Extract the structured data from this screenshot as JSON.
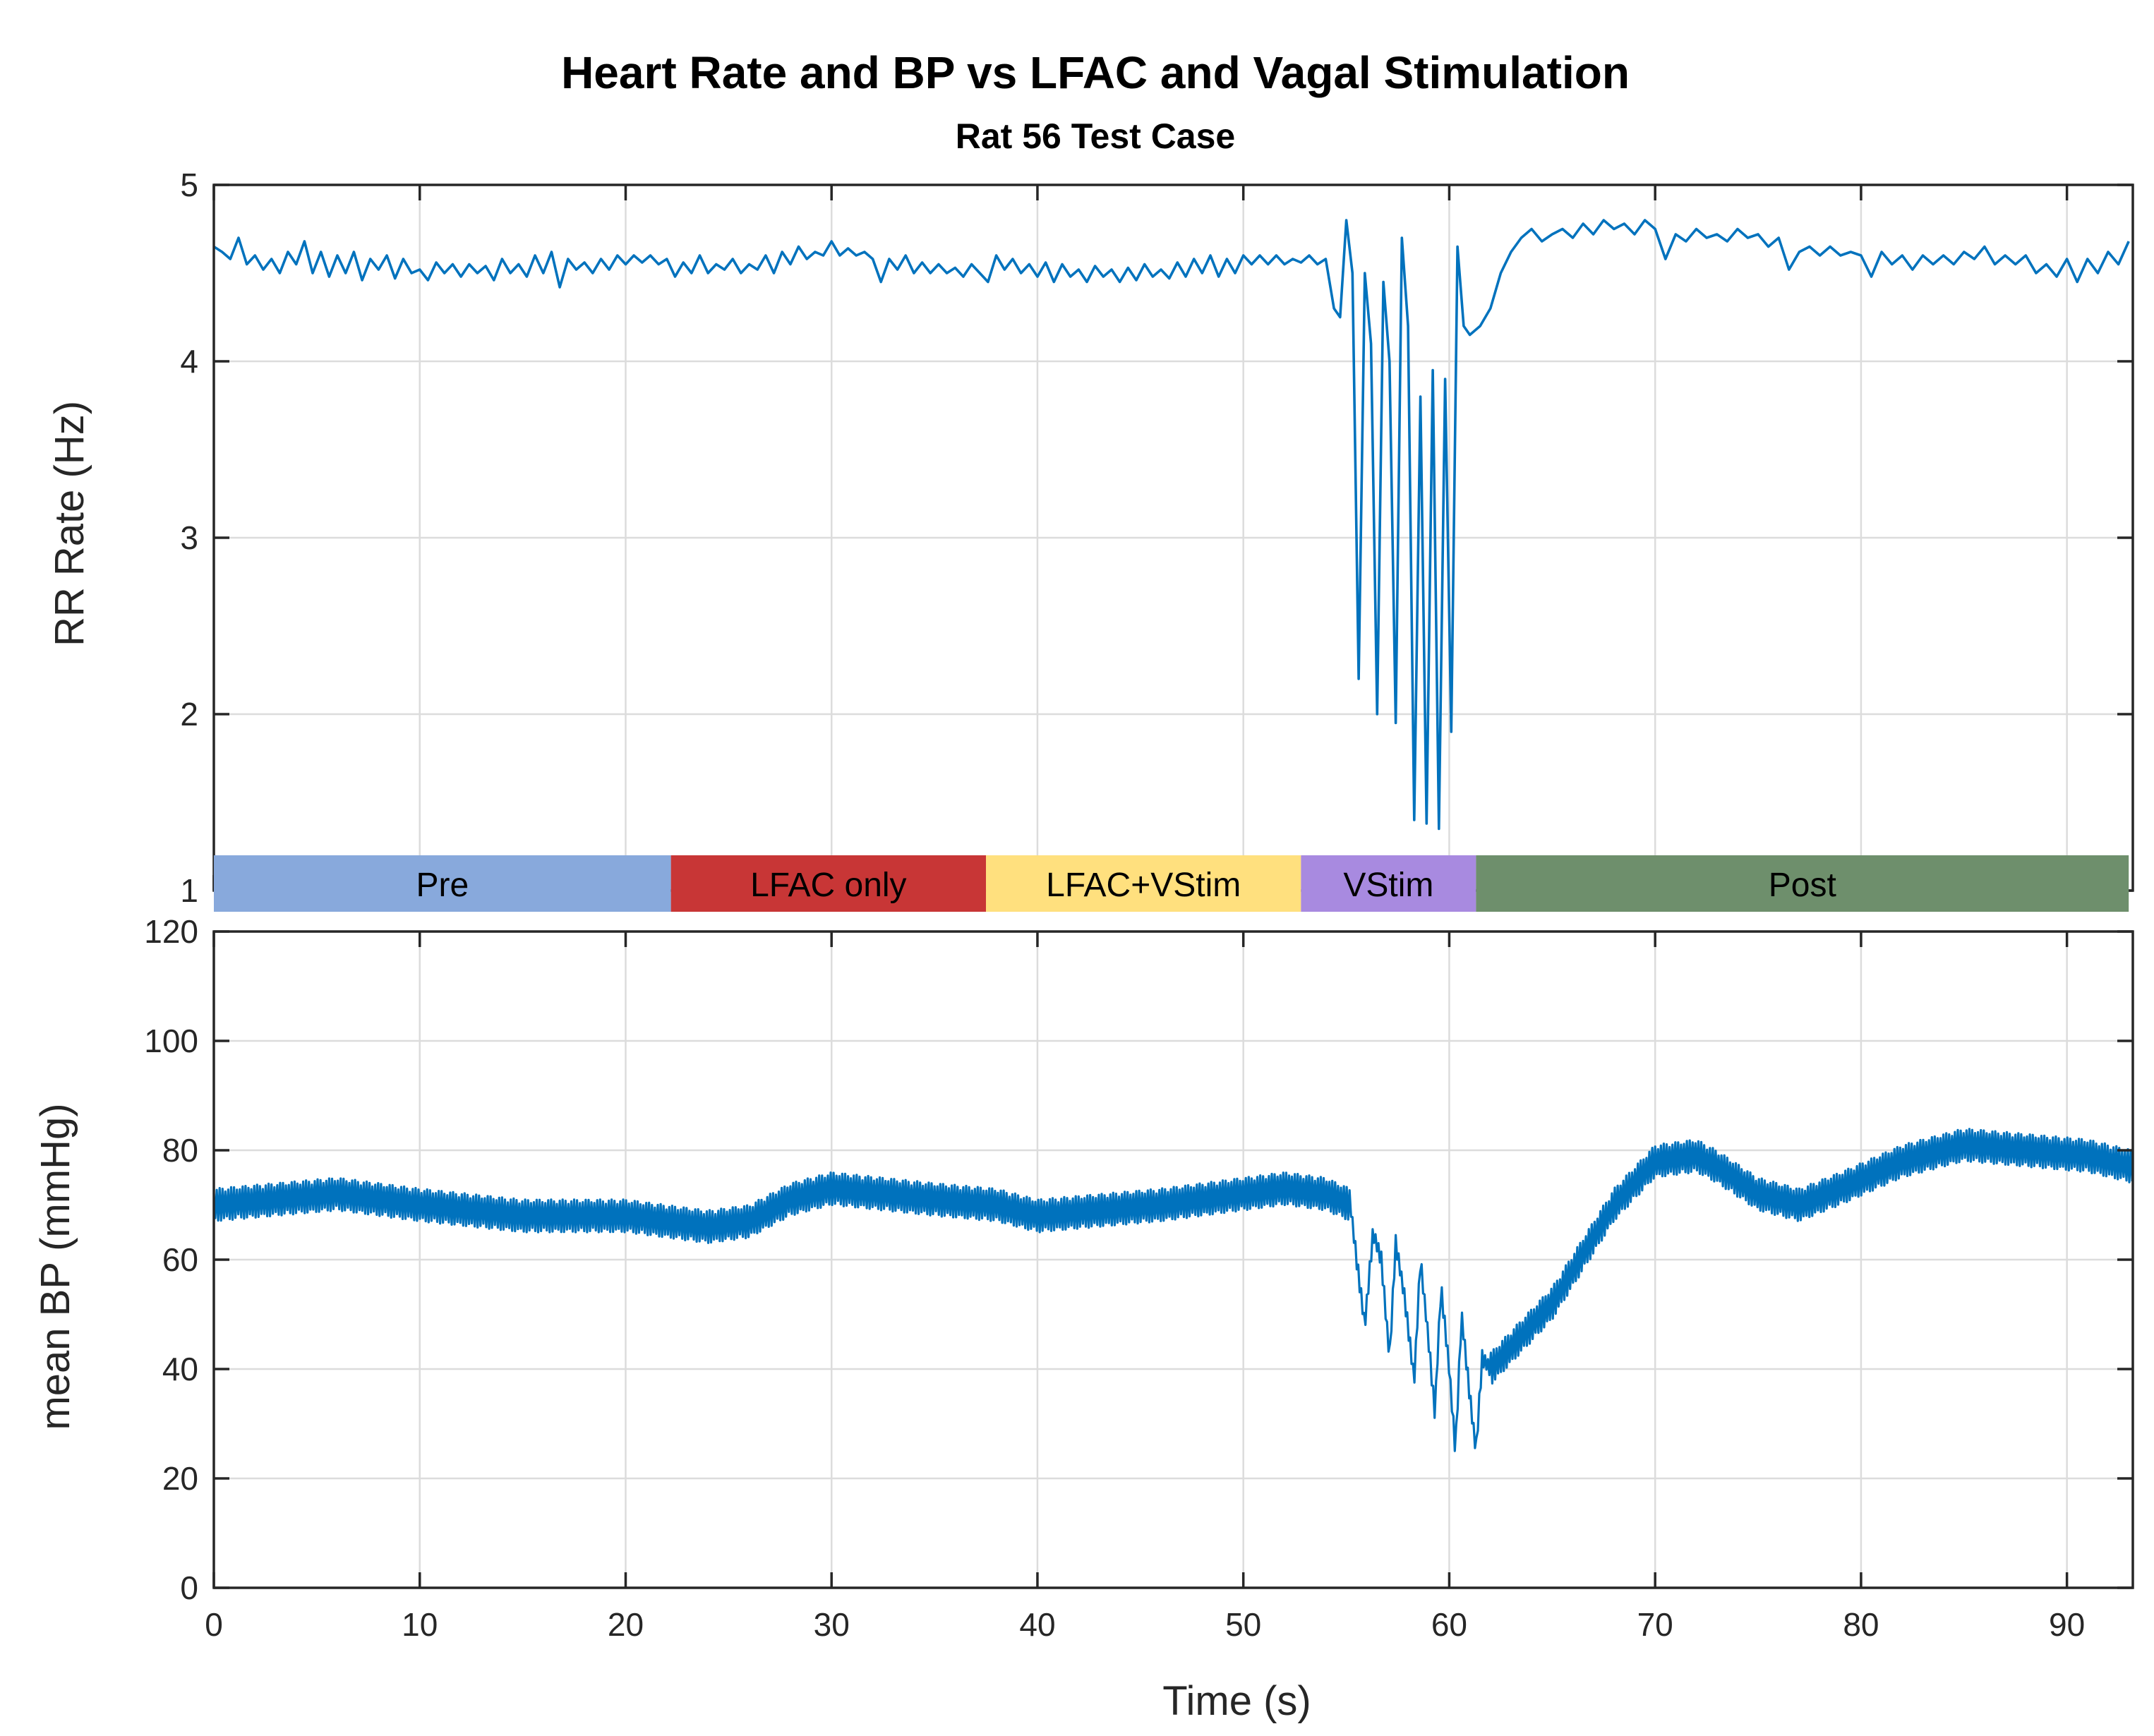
{
  "title": "Heart Rate and BP vs LFAC and Vagal Stimulation",
  "subtitle": "Rat 56 Test Case",
  "line_color": "#0072bd",
  "chart_data": [
    {
      "type": "line",
      "name": "rr_rate",
      "xlabel": "",
      "ylabel": "RR Rate (Hz)",
      "xlim": [
        0,
        93.2
      ],
      "ylim": [
        1,
        5
      ],
      "yticks": [
        1,
        2,
        3,
        4,
        5
      ],
      "grid": true,
      "points": [
        [
          0.0,
          4.65
        ],
        [
          0.4,
          4.62
        ],
        [
          0.8,
          4.58
        ],
        [
          1.2,
          4.7
        ],
        [
          1.6,
          4.55
        ],
        [
          2.0,
          4.6
        ],
        [
          2.4,
          4.52
        ],
        [
          2.8,
          4.58
        ],
        [
          3.2,
          4.5
        ],
        [
          3.6,
          4.62
        ],
        [
          4.0,
          4.55
        ],
        [
          4.4,
          4.68
        ],
        [
          4.8,
          4.5
        ],
        [
          5.2,
          4.62
        ],
        [
          5.6,
          4.48
        ],
        [
          6.0,
          4.6
        ],
        [
          6.4,
          4.5
        ],
        [
          6.8,
          4.62
        ],
        [
          7.2,
          4.46
        ],
        [
          7.6,
          4.58
        ],
        [
          8.0,
          4.52
        ],
        [
          8.4,
          4.6
        ],
        [
          8.8,
          4.47
        ],
        [
          9.2,
          4.58
        ],
        [
          9.6,
          4.5
        ],
        [
          10.0,
          4.52
        ],
        [
          10.4,
          4.46
        ],
        [
          10.8,
          4.56
        ],
        [
          11.2,
          4.5
        ],
        [
          11.6,
          4.55
        ],
        [
          12.0,
          4.48
        ],
        [
          12.4,
          4.55
        ],
        [
          12.8,
          4.5
        ],
        [
          13.2,
          4.54
        ],
        [
          13.6,
          4.46
        ],
        [
          14.0,
          4.58
        ],
        [
          14.4,
          4.5
        ],
        [
          14.8,
          4.55
        ],
        [
          15.2,
          4.48
        ],
        [
          15.6,
          4.6
        ],
        [
          16.0,
          4.5
        ],
        [
          16.4,
          4.62
        ],
        [
          16.8,
          4.42
        ],
        [
          17.2,
          4.58
        ],
        [
          17.6,
          4.52
        ],
        [
          18.0,
          4.56
        ],
        [
          18.4,
          4.5
        ],
        [
          18.8,
          4.58
        ],
        [
          19.2,
          4.52
        ],
        [
          19.6,
          4.6
        ],
        [
          20.0,
          4.55
        ],
        [
          20.4,
          4.6
        ],
        [
          20.8,
          4.56
        ],
        [
          21.2,
          4.6
        ],
        [
          21.6,
          4.55
        ],
        [
          22.0,
          4.58
        ],
        [
          22.4,
          4.48
        ],
        [
          22.8,
          4.56
        ],
        [
          23.2,
          4.5
        ],
        [
          23.6,
          4.6
        ],
        [
          24.0,
          4.5
        ],
        [
          24.4,
          4.55
        ],
        [
          24.8,
          4.52
        ],
        [
          25.2,
          4.58
        ],
        [
          25.6,
          4.5
        ],
        [
          26.0,
          4.55
        ],
        [
          26.4,
          4.52
        ],
        [
          26.8,
          4.6
        ],
        [
          27.2,
          4.5
        ],
        [
          27.6,
          4.62
        ],
        [
          28.0,
          4.55
        ],
        [
          28.4,
          4.65
        ],
        [
          28.8,
          4.58
        ],
        [
          29.2,
          4.62
        ],
        [
          29.6,
          4.6
        ],
        [
          30.0,
          4.68
        ],
        [
          30.4,
          4.6
        ],
        [
          30.8,
          4.64
        ],
        [
          31.2,
          4.6
        ],
        [
          31.6,
          4.62
        ],
        [
          32.0,
          4.58
        ],
        [
          32.4,
          4.45
        ],
        [
          32.8,
          4.58
        ],
        [
          33.2,
          4.52
        ],
        [
          33.6,
          4.6
        ],
        [
          34.0,
          4.5
        ],
        [
          34.4,
          4.56
        ],
        [
          34.8,
          4.5
        ],
        [
          35.2,
          4.55
        ],
        [
          35.6,
          4.5
        ],
        [
          36.0,
          4.53
        ],
        [
          36.4,
          4.48
        ],
        [
          36.8,
          4.55
        ],
        [
          37.2,
          4.5
        ],
        [
          37.6,
          4.45
        ],
        [
          38.0,
          4.6
        ],
        [
          38.4,
          4.52
        ],
        [
          38.8,
          4.58
        ],
        [
          39.2,
          4.5
        ],
        [
          39.6,
          4.55
        ],
        [
          40.0,
          4.48
        ],
        [
          40.4,
          4.56
        ],
        [
          40.8,
          4.45
        ],
        [
          41.2,
          4.55
        ],
        [
          41.6,
          4.48
        ],
        [
          42.0,
          4.52
        ],
        [
          42.4,
          4.45
        ],
        [
          42.8,
          4.54
        ],
        [
          43.2,
          4.48
        ],
        [
          43.6,
          4.52
        ],
        [
          44.0,
          4.45
        ],
        [
          44.4,
          4.53
        ],
        [
          44.8,
          4.46
        ],
        [
          45.2,
          4.55
        ],
        [
          45.6,
          4.48
        ],
        [
          46.0,
          4.52
        ],
        [
          46.4,
          4.47
        ],
        [
          46.8,
          4.56
        ],
        [
          47.2,
          4.48
        ],
        [
          47.6,
          4.58
        ],
        [
          48.0,
          4.5
        ],
        [
          48.4,
          4.6
        ],
        [
          48.8,
          4.48
        ],
        [
          49.2,
          4.58
        ],
        [
          49.6,
          4.5
        ],
        [
          50.0,
          4.6
        ],
        [
          50.4,
          4.55
        ],
        [
          50.8,
          4.6
        ],
        [
          51.2,
          4.55
        ],
        [
          51.6,
          4.6
        ],
        [
          52.0,
          4.55
        ],
        [
          52.4,
          4.58
        ],
        [
          52.8,
          4.56
        ],
        [
          53.2,
          4.6
        ],
        [
          53.6,
          4.55
        ],
        [
          54.0,
          4.58
        ],
        [
          54.4,
          4.3
        ],
        [
          54.7,
          4.25
        ],
        [
          55.0,
          4.8
        ],
        [
          55.3,
          4.5
        ],
        [
          55.6,
          2.2
        ],
        [
          55.9,
          4.5
        ],
        [
          56.2,
          4.1
        ],
        [
          56.5,
          2.0
        ],
        [
          56.8,
          4.45
        ],
        [
          57.1,
          4.0
        ],
        [
          57.4,
          1.95
        ],
        [
          57.7,
          4.7
        ],
        [
          58.0,
          4.2
        ],
        [
          58.3,
          1.4
        ],
        [
          58.6,
          3.8
        ],
        [
          58.9,
          1.38
        ],
        [
          59.2,
          3.95
        ],
        [
          59.5,
          1.35
        ],
        [
          59.8,
          3.9
        ],
        [
          60.1,
          1.9
        ],
        [
          60.4,
          4.65
        ],
        [
          60.7,
          4.2
        ],
        [
          61.0,
          4.15
        ],
        [
          61.5,
          4.2
        ],
        [
          62.0,
          4.3
        ],
        [
          62.5,
          4.5
        ],
        [
          63.0,
          4.62
        ],
        [
          63.5,
          4.7
        ],
        [
          64.0,
          4.75
        ],
        [
          64.5,
          4.68
        ],
        [
          65.0,
          4.72
        ],
        [
          65.5,
          4.75
        ],
        [
          66.0,
          4.7
        ],
        [
          66.5,
          4.78
        ],
        [
          67.0,
          4.72
        ],
        [
          67.5,
          4.8
        ],
        [
          68.0,
          4.75
        ],
        [
          68.5,
          4.78
        ],
        [
          69.0,
          4.72
        ],
        [
          69.5,
          4.8
        ],
        [
          70.0,
          4.75
        ],
        [
          70.5,
          4.58
        ],
        [
          71.0,
          4.72
        ],
        [
          71.5,
          4.68
        ],
        [
          72.0,
          4.75
        ],
        [
          72.5,
          4.7
        ],
        [
          73.0,
          4.72
        ],
        [
          73.5,
          4.68
        ],
        [
          74.0,
          4.75
        ],
        [
          74.5,
          4.7
        ],
        [
          75.0,
          4.72
        ],
        [
          75.5,
          4.65
        ],
        [
          76.0,
          4.7
        ],
        [
          76.5,
          4.52
        ],
        [
          77.0,
          4.62
        ],
        [
          77.5,
          4.65
        ],
        [
          78.0,
          4.6
        ],
        [
          78.5,
          4.65
        ],
        [
          79.0,
          4.6
        ],
        [
          79.5,
          4.62
        ],
        [
          80.0,
          4.6
        ],
        [
          80.5,
          4.48
        ],
        [
          81.0,
          4.62
        ],
        [
          81.5,
          4.55
        ],
        [
          82.0,
          4.6
        ],
        [
          82.5,
          4.52
        ],
        [
          83.0,
          4.6
        ],
        [
          83.5,
          4.55
        ],
        [
          84.0,
          4.6
        ],
        [
          84.5,
          4.55
        ],
        [
          85.0,
          4.62
        ],
        [
          85.5,
          4.58
        ],
        [
          86.0,
          4.65
        ],
        [
          86.5,
          4.55
        ],
        [
          87.0,
          4.6
        ],
        [
          87.5,
          4.55
        ],
        [
          88.0,
          4.6
        ],
        [
          88.5,
          4.5
        ],
        [
          89.0,
          4.55
        ],
        [
          89.5,
          4.48
        ],
        [
          90.0,
          4.58
        ],
        [
          90.5,
          4.45
        ],
        [
          91.0,
          4.58
        ],
        [
          91.5,
          4.5
        ],
        [
          92.0,
          4.62
        ],
        [
          92.5,
          4.55
        ],
        [
          93.0,
          4.68
        ]
      ]
    },
    {
      "type": "line",
      "name": "mean_bp",
      "xlabel": "Time (s)",
      "ylabel": "mean BP (mmHg)",
      "xlim": [
        0,
        93.2
      ],
      "ylim": [
        0,
        120
      ],
      "xticks": [
        0,
        10,
        20,
        30,
        40,
        50,
        60,
        70,
        80,
        90
      ],
      "yticks": [
        0,
        20,
        40,
        60,
        80,
        100,
        120
      ],
      "grid": true,
      "oscillation_amplitude": 3,
      "envelope": [
        [
          0,
          70
        ],
        [
          6,
          72
        ],
        [
          10,
          70
        ],
        [
          15,
          68
        ],
        [
          20,
          68
        ],
        [
          24,
          66
        ],
        [
          26,
          67
        ],
        [
          28,
          71
        ],
        [
          30,
          73
        ],
        [
          35,
          71
        ],
        [
          38,
          70
        ],
        [
          40,
          68
        ],
        [
          43,
          69
        ],
        [
          46,
          70
        ],
        [
          50,
          72
        ],
        [
          52,
          73
        ],
        [
          54,
          72
        ],
        [
          55.2,
          70
        ],
        [
          55.5,
          60
        ],
        [
          55.9,
          48
        ],
        [
          56.3,
          65
        ],
        [
          56.7,
          60
        ],
        [
          57.1,
          42
        ],
        [
          57.4,
          63
        ],
        [
          57.8,
          54
        ],
        [
          58.3,
          38
        ],
        [
          58.6,
          60
        ],
        [
          59.0,
          45
        ],
        [
          59.3,
          32
        ],
        [
          59.6,
          55
        ],
        [
          60.0,
          40
        ],
        [
          60.3,
          25
        ],
        [
          60.6,
          50
        ],
        [
          61.0,
          35
        ],
        [
          61.3,
          25
        ],
        [
          61.6,
          42
        ],
        [
          62.0,
          40
        ],
        [
          63,
          44
        ],
        [
          65,
          52
        ],
        [
          68,
          70
        ],
        [
          70,
          78
        ],
        [
          72,
          79
        ],
        [
          73,
          77
        ],
        [
          75,
          72
        ],
        [
          77,
          70
        ],
        [
          79,
          73
        ],
        [
          82,
          78
        ],
        [
          85,
          81
        ],
        [
          88,
          80
        ],
        [
          91,
          79
        ],
        [
          93.2,
          77
        ]
      ]
    }
  ],
  "phases": [
    {
      "label": "Pre",
      "start": 0.0,
      "end": 22.2,
      "color": "#88a9dc"
    },
    {
      "label": "LFAC only",
      "start": 22.2,
      "end": 37.5,
      "color": "#c83636"
    },
    {
      "label": "LFAC+VStim",
      "start": 37.5,
      "end": 52.8,
      "color": "#ffe07e"
    },
    {
      "label": "VStim",
      "start": 52.8,
      "end": 61.3,
      "color": "#a88ae0"
    },
    {
      "label": "Post",
      "start": 61.3,
      "end": 93.0,
      "color": "#6e8f6c"
    }
  ]
}
